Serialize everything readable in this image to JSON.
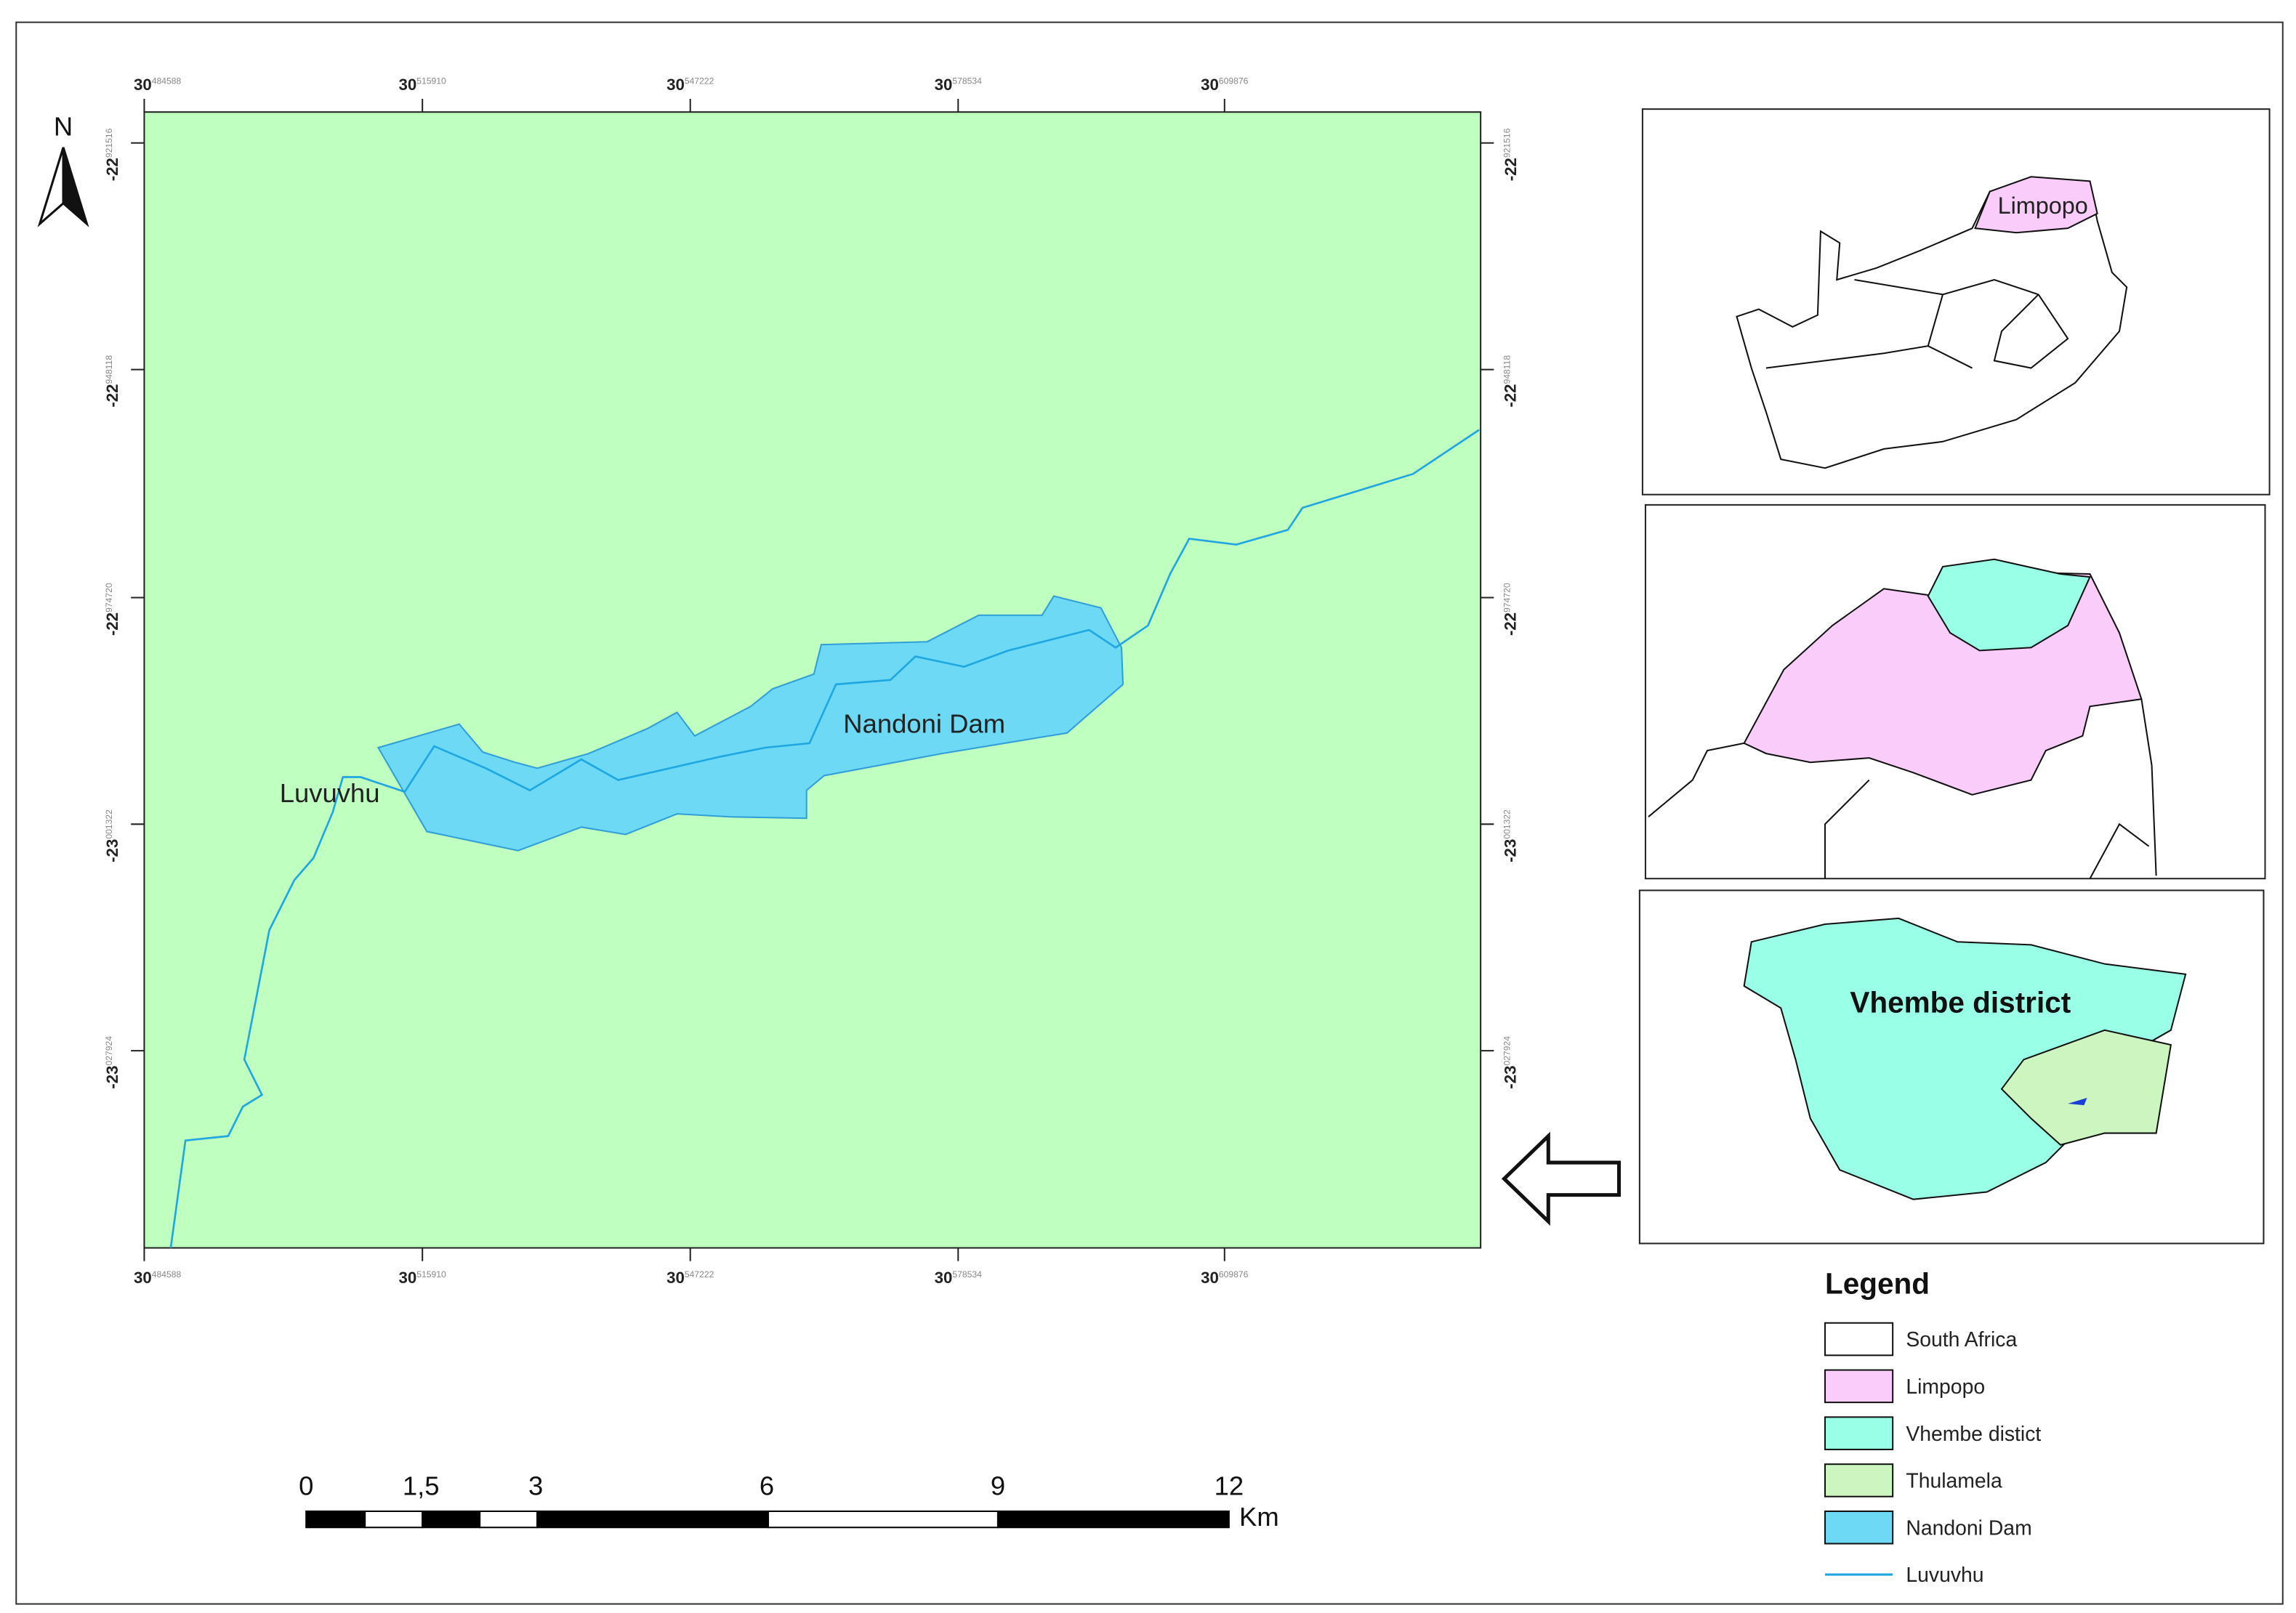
{
  "north": "N",
  "map_labels": {
    "dam": "Nandoni Dam",
    "river": "Luvuvhu"
  },
  "grid_labels": {
    "x": [
      {
        "deg": "30",
        "sub": "484588"
      },
      {
        "deg": "30",
        "sub": "515910"
      },
      {
        "deg": "30",
        "sub": "547222"
      },
      {
        "deg": "30",
        "sub": "578534"
      },
      {
        "deg": "30",
        "sub": "609876"
      }
    ],
    "y": [
      {
        "deg": "-22",
        "sub": "921516"
      },
      {
        "deg": "-22",
        "sub": "948118"
      },
      {
        "deg": "-22",
        "sub": "974720"
      },
      {
        "deg": "-23",
        "sub": "001322"
      },
      {
        "deg": "-23",
        "sub": "027924"
      }
    ]
  },
  "insets": {
    "limpopo": "Limpopo",
    "vhembe": "Vhembe district"
  },
  "legend": {
    "title": "Legend",
    "items": [
      "South Africa",
      "Limpopo",
      "Vhembe distict",
      "Thulamela",
      "Nandoni Dam",
      "Luvuvhu"
    ]
  },
  "scale_bar": {
    "labels": [
      "0",
      "1,5",
      "3",
      "6",
      "9",
      "12"
    ],
    "unit": "Km"
  }
}
